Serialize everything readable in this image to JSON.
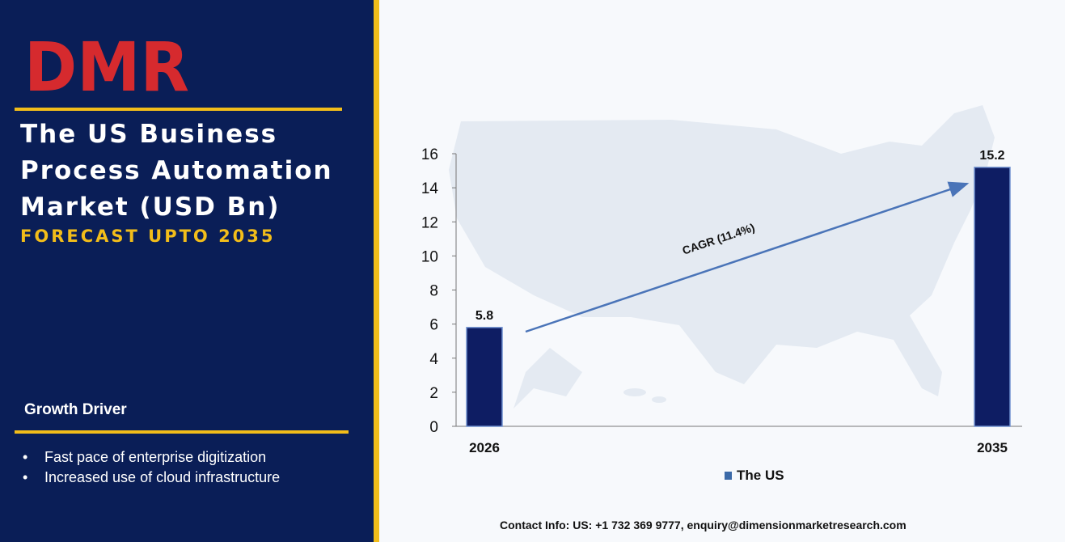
{
  "brand": {
    "logo_text": "DMR",
    "logo_color": "#d62a2e",
    "logo_accent_color": "#b8c6c6"
  },
  "header": {
    "title": "The US Business Process Automation Market (USD Bn)",
    "subtitle": "FORECAST UPTO 2035"
  },
  "growth_driver": {
    "heading": "Growth Driver",
    "items": [
      "Fast pace of enterprise digitization",
      "Increased use of cloud infrastructure"
    ]
  },
  "contact": {
    "label": "Contact Info:",
    "value": "US: +1 732 369 9777, enquiry@dimensionmarketresearch.com"
  },
  "colors": {
    "panel": "#0a1e57",
    "gold": "#f2bd1a",
    "bar": "#0e1d63",
    "arrow": "#4a74b8"
  },
  "icons": [
    "us-map-background-icon",
    "legend-square-icon"
  ],
  "chart_data": {
    "type": "bar",
    "categories": [
      "2026",
      "2035"
    ],
    "series": [
      {
        "name": "The US",
        "values": [
          5.8,
          15.2
        ]
      }
    ],
    "data_labels": [
      "5.8",
      "15.2"
    ],
    "yticks": [
      0,
      2,
      4,
      6,
      8,
      10,
      12,
      14,
      16
    ],
    "ylim": [
      0,
      16
    ],
    "annotation": "CAGR (11.4%)",
    "legend": "bottom-center",
    "grid": false
  }
}
